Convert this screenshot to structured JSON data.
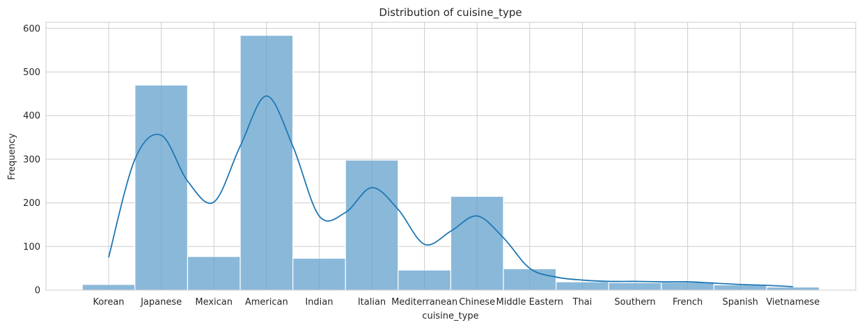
{
  "chart_data": {
    "type": "bar",
    "title": "Distribution of cuisine_type",
    "xlabel": "cuisine_type",
    "ylabel": "Frequency",
    "categories": [
      "Korean",
      "Japanese",
      "Mexican",
      "American",
      "Indian",
      "Italian",
      "Mediterranean",
      "Chinese",
      "Middle Eastern",
      "Thai",
      "Southern",
      "French",
      "Spanish",
      "Vietnamese"
    ],
    "values": [
      13,
      470,
      77,
      584,
      73,
      298,
      46,
      215,
      49,
      19,
      17,
      18,
      12,
      7
    ],
    "yticks": [
      0,
      100,
      200,
      300,
      400,
      500,
      600
    ],
    "ylim": [
      0,
      614
    ],
    "grid": true,
    "kde": {
      "x": [
        0,
        0.5,
        1,
        1.5,
        2,
        2.5,
        3,
        3.5,
        4,
        4.5,
        5,
        5.5,
        6,
        6.5,
        7,
        7.5,
        8,
        8.5,
        9,
        9.5,
        10,
        10.5,
        11,
        11.5,
        12,
        12.5,
        13
      ],
      "y": [
        75,
        300,
        355,
        250,
        202,
        330,
        445,
        330,
        170,
        178,
        235,
        185,
        105,
        135,
        170,
        120,
        50,
        30,
        23,
        20,
        20,
        19,
        19,
        16,
        13,
        11,
        8
      ]
    },
    "colors": {
      "bar": "#8ab8d9",
      "kde": "#1f77b4"
    }
  }
}
